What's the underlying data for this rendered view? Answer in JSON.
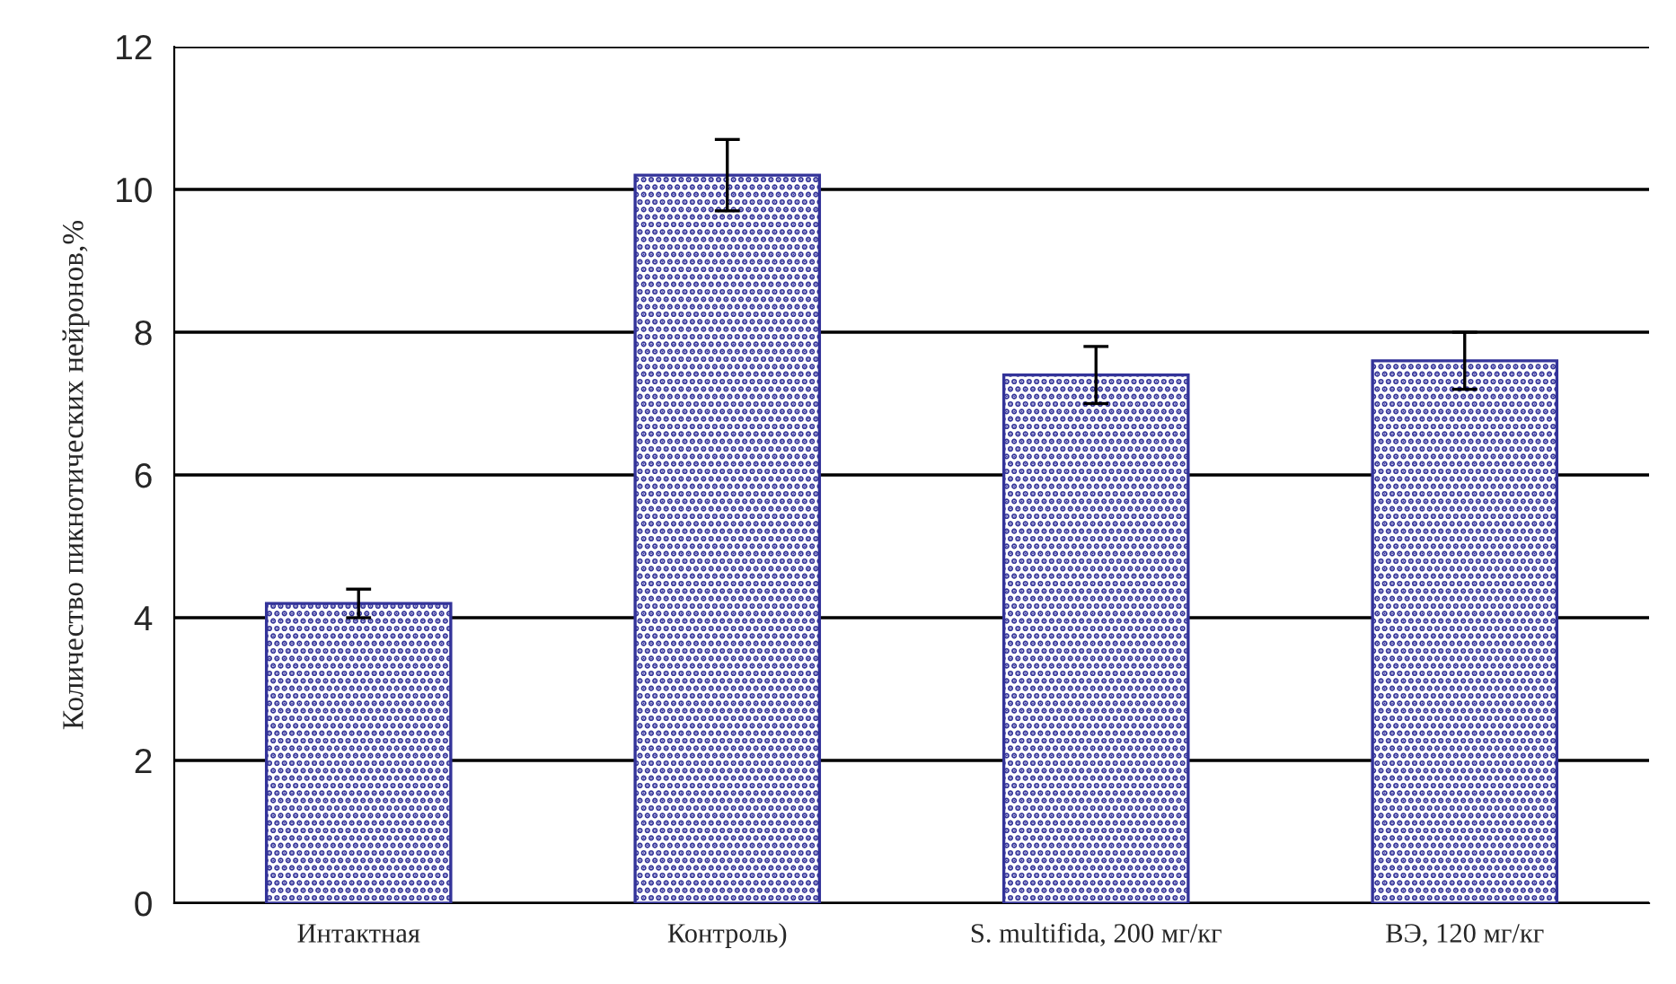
{
  "chart_data": {
    "type": "bar",
    "ylabel": "Количество пикнотических нейронов,%",
    "categories": [
      "Интактная",
      "Контроль)",
      "S. multifida, 200 мг/кг",
      "ВЭ, 120 мг/кг"
    ],
    "values": [
      4.2,
      10.2,
      7.4,
      7.6
    ],
    "errors": [
      0.2,
      0.5,
      0.4,
      0.4
    ],
    "color": "#333399",
    "ylim": [
      0,
      12
    ],
    "yticks": [
      0,
      2,
      4,
      6,
      8,
      10,
      12
    ],
    "grid": "y"
  }
}
